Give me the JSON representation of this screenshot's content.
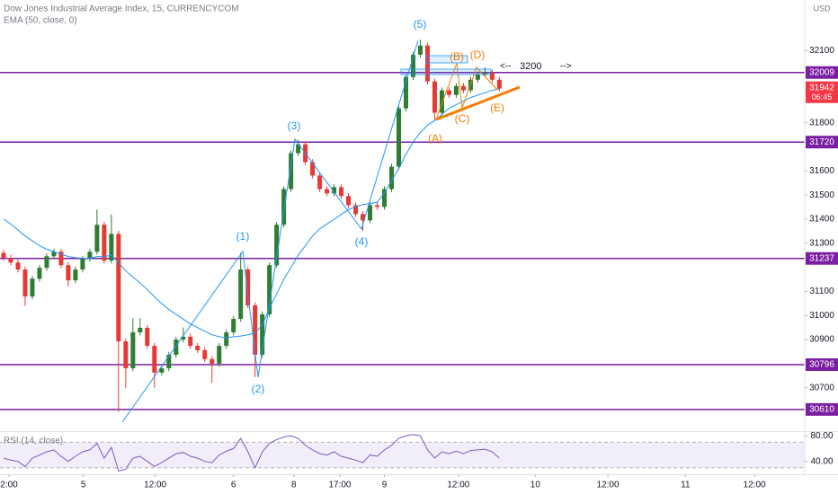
{
  "chart_data": {
    "type": "candlestick",
    "title": "Dow Jones Industrial Average Index, 15, CURRENCYCOM",
    "currency": "USD",
    "up_color": "#2e7d32",
    "down_color": "#e53935",
    "open": [
      31260,
      31239,
      31220,
      31191,
      31079,
      31153,
      31198,
      31246,
      31265,
      31209,
      31146,
      31191,
      31235,
      31265,
      31377,
      31228,
      31339,
      30893,
      30781,
      30930,
      30949,
      30874,
      30763,
      30781,
      30837,
      30900,
      30912,
      30874,
      30856,
      30819,
      30800,
      30874,
      30930,
      30986,
      31191,
      31042,
      30837,
      31005,
      31209,
      31377,
      31525,
      31674,
      31711,
      31637,
      31581,
      31525,
      31507,
      31533,
      31496,
      31458,
      31421,
      31395,
      31458,
      31451,
      31525,
      31618,
      31860,
      31990,
      32083,
      32121,
      31972,
      31842,
      31935,
      31916,
      31953,
      31935,
      31979,
      32002,
      32009,
      31979
    ],
    "high": [
      31272,
      31251,
      31232,
      31203,
      31165,
      31210,
      31258,
      31277,
      31277,
      31221,
      31203,
      31247,
      31277,
      31440,
      31389,
      31420,
      31351,
      30905,
      30990,
      30990,
      30961,
      30886,
      30793,
      30849,
      30912,
      30950,
      30924,
      30886,
      30868,
      30831,
      30886,
      30942,
      30998,
      31260,
      31203,
      31054,
      31017,
      31221,
      31389,
      31537,
      31686,
      31730,
      31723,
      31649,
      31593,
      31537,
      31545,
      31545,
      31508,
      31470,
      31433,
      31470,
      31470,
      31537,
      31630,
      31872,
      32002,
      32095,
      32145,
      32133,
      31984,
      31947,
      31947,
      31965,
      31965,
      31991,
      32014,
      32030,
      32021,
      31991
    ],
    "low": [
      31227,
      31208,
      31179,
      31040,
      31067,
      31141,
      31186,
      31234,
      31197,
      31120,
      31134,
      31179,
      31223,
      31253,
      31216,
      31216,
      30600,
      30700,
      30769,
      30918,
      30862,
      30700,
      30751,
      30769,
      30825,
      30888,
      30862,
      30844,
      30807,
      30720,
      30788,
      30862,
      30918,
      30974,
      31030,
      30745,
      30825,
      30993,
      31197,
      31365,
      31513,
      31662,
      31625,
      31569,
      31513,
      31495,
      31495,
      31484,
      31446,
      31409,
      31350,
      31383,
      31439,
      31439,
      31513,
      31606,
      31848,
      31978,
      32071,
      31960,
      31810,
      31830,
      31904,
      31904,
      31923,
      31923,
      31967,
      31990,
      31967,
      31930
    ],
    "close": [
      31239,
      31220,
      31191,
      31079,
      31153,
      31198,
      31246,
      31265,
      31209,
      31146,
      31191,
      31235,
      31265,
      31377,
      31228,
      31339,
      30893,
      30781,
      30930,
      30949,
      30874,
      30763,
      30781,
      30837,
      30900,
      30912,
      30874,
      30856,
      30819,
      30800,
      30874,
      30930,
      30986,
      31191,
      31042,
      30837,
      31005,
      31209,
      31377,
      31525,
      31674,
      31711,
      31637,
      31581,
      31525,
      31507,
      31533,
      31496,
      31458,
      31421,
      31395,
      31458,
      31451,
      31525,
      31618,
      31860,
      31990,
      32083,
      32121,
      31972,
      31842,
      31935,
      31916,
      31953,
      31935,
      31979,
      32002,
      32009,
      31979,
      31942
    ],
    "series": [
      {
        "name": "EMA (50, close, 0)",
        "color": "#2196f3",
        "values": [
          31400,
          31380,
          31355,
          31330,
          31310,
          31290,
          31275,
          31265,
          31255,
          31245,
          31240,
          31238,
          31238,
          31245,
          31245,
          31250,
          31220,
          31185,
          31160,
          31135,
          31108,
          31078,
          31050,
          31025,
          31005,
          30985,
          30965,
          30950,
          30935,
          30920,
          30912,
          30908,
          30912,
          30915,
          30920,
          30928,
          30960,
          31030,
          31090,
          31150,
          31200,
          31250,
          31290,
          31330,
          31360,
          31380,
          31400,
          31420,
          31440,
          31452,
          31460,
          31465,
          31470,
          31510,
          31560,
          31610,
          31670,
          31720,
          31760,
          31790,
          31810,
          31835,
          31860,
          31875,
          31890,
          31905,
          31915,
          31925,
          31935,
          31942
        ]
      }
    ],
    "xlim": [
      0,
      112
    ],
    "xticks": [
      {
        "value": 1.25,
        "label": "2:00"
      },
      {
        "value": 11.6,
        "label": "5"
      },
      {
        "value": 21.6,
        "label": "12:00"
      },
      {
        "value": 32.5,
        "label": "6"
      },
      {
        "value": 40.9,
        "label": "8"
      },
      {
        "value": 47.3,
        "label": "17:00"
      },
      {
        "value": 53.5,
        "label": "9"
      },
      {
        "value": 63.8,
        "label": "12:00"
      },
      {
        "value": 74.5,
        "label": "10"
      },
      {
        "value": 84.6,
        "label": "12:00"
      },
      {
        "value": 95.4,
        "label": "11"
      },
      {
        "value": 105,
        "label": "12:00"
      }
    ],
    "ylim": [
      30520,
      32310
    ],
    "yticks": [
      32100,
      31800,
      31600,
      31500,
      31400,
      31300,
      31100,
      31000,
      30900,
      30700
    ],
    "levels": [
      32009,
      31720,
      31237,
      30796,
      30610
    ],
    "level_color": "#7b1fa2",
    "price_badge": {
      "value": 31942,
      "countdown": "06:45",
      "color": "#f23645"
    },
    "annotations": {
      "waves": [
        "(1)",
        "(2)",
        "(3)",
        "(4)",
        "(5)"
      ],
      "correction": [
        "(A)",
        "(B)",
        "(C)",
        "(D)",
        "(E)"
      ],
      "target": "3200",
      "left_arrow": "<--",
      "right_arrow": "-->"
    },
    "rsi": {
      "name": "RSI (14, close)",
      "color": "#7e57c2",
      "ylim": [
        20,
        90
      ],
      "band": [
        30,
        70
      ],
      "yticks": [
        {
          "value": 80,
          "label": "80.00"
        },
        {
          "value": 40,
          "label": "40.00"
        }
      ],
      "values": [
        45,
        42,
        40,
        32,
        45,
        50,
        55,
        58,
        48,
        40,
        48,
        55,
        58,
        68,
        45,
        62,
        25,
        28,
        45,
        48,
        40,
        32,
        38,
        45,
        52,
        54,
        48,
        45,
        40,
        38,
        50,
        56,
        60,
        76,
        55,
        30,
        55,
        68,
        74,
        78,
        80,
        76,
        65,
        58,
        52,
        50,
        55,
        48,
        45,
        42,
        38,
        50,
        48,
        58,
        65,
        76,
        80,
        82,
        80,
        58,
        45,
        55,
        52,
        56,
        52,
        57,
        58,
        59,
        55,
        45
      ]
    }
  }
}
